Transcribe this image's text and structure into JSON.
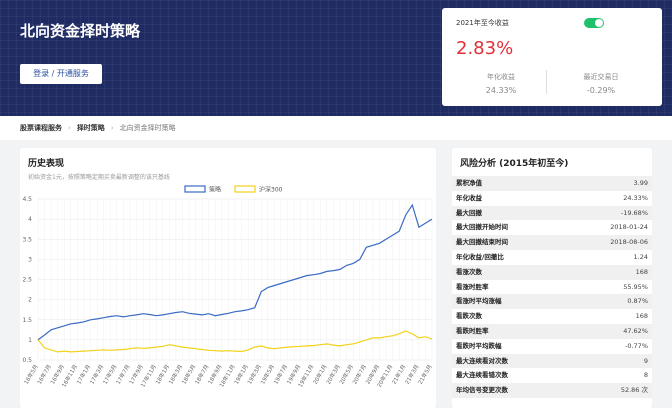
{
  "header": {
    "title": "北向资金择时策略",
    "button": "登录 / 开通服务"
  },
  "card": {
    "label": "2021年至今收益",
    "value": "2.83%",
    "stats": [
      {
        "label": "年化收益",
        "value": "24.33%"
      },
      {
        "label": "最近交易日",
        "value": "-0.29%"
      }
    ]
  },
  "breadcrumb": [
    "股票课程服务",
    "择时策略",
    "北向资金择时策略"
  ],
  "chart_data": {
    "type": "line",
    "title": "历史表现",
    "subtitle": "初始资金1元，按照策略定期买卖最新调整的该只基线",
    "categories": [
      "16年5月",
      null,
      "16年7月",
      null,
      "16年9月",
      null,
      "16年11月",
      null,
      "17年1月",
      null,
      "17年3月",
      null,
      "17年5月",
      null,
      "17年7月",
      null,
      "17年9月",
      null,
      "17年11月",
      null,
      "18年1月",
      null,
      "18年3月",
      null,
      "18年5月",
      null,
      "18年7月",
      null,
      "18年9月",
      null,
      "18年11月",
      null,
      "19年1月",
      null,
      "19年3月",
      null,
      "19年5月",
      null,
      "19年7月",
      null,
      "19年9月",
      null,
      "19年11月",
      null,
      "20年1月",
      null,
      "20年3月",
      null,
      "20年5月",
      null,
      "20年7月",
      null,
      "20年9月",
      null,
      "20年11月",
      null,
      "21年1月",
      null,
      "21年3月",
      null,
      "21年5月"
    ],
    "series": [
      {
        "name": "策略",
        "color": "#3b6bc4",
        "values": [
          1.0,
          1.12,
          1.25,
          1.3,
          1.35,
          1.4,
          1.42,
          1.45,
          1.5,
          1.52,
          1.55,
          1.58,
          1.6,
          1.57,
          1.6,
          1.62,
          1.65,
          1.63,
          1.6,
          1.62,
          1.65,
          1.68,
          1.7,
          1.66,
          1.64,
          1.62,
          1.65,
          1.6,
          1.63,
          1.66,
          1.7,
          1.72,
          1.75,
          1.8,
          2.2,
          2.3,
          2.35,
          2.4,
          2.45,
          2.5,
          2.55,
          2.6,
          2.62,
          2.65,
          2.7,
          2.72,
          2.75,
          2.85,
          2.9,
          3.0,
          3.3,
          3.35,
          3.4,
          3.5,
          3.6,
          3.7,
          4.1,
          4.35,
          3.8,
          3.9,
          4.0
        ]
      },
      {
        "name": "沪深300",
        "color": "#f2d21b",
        "values": [
          1.0,
          0.8,
          0.75,
          0.7,
          0.72,
          0.7,
          0.71,
          0.72,
          0.73,
          0.74,
          0.75,
          0.74,
          0.75,
          0.76,
          0.78,
          0.8,
          0.79,
          0.8,
          0.82,
          0.84,
          0.88,
          0.85,
          0.82,
          0.8,
          0.78,
          0.76,
          0.74,
          0.73,
          0.72,
          0.73,
          0.72,
          0.71,
          0.75,
          0.82,
          0.85,
          0.8,
          0.78,
          0.8,
          0.82,
          0.83,
          0.84,
          0.85,
          0.86,
          0.88,
          0.9,
          0.87,
          0.85,
          0.88,
          0.9,
          0.95,
          1.0,
          1.05,
          1.05,
          1.08,
          1.1,
          1.15,
          1.22,
          1.15,
          1.05,
          1.08,
          1.02
        ]
      }
    ],
    "ylim": [
      0.5,
      4.5
    ],
    "yticks": [
      0.5,
      1,
      1.5,
      2,
      2.5,
      3,
      3.5,
      4,
      4.5
    ],
    "grid": true
  },
  "risk_table": {
    "title": "风险分析 (2015年初至今)",
    "rows": [
      [
        "累积净值",
        "3.99"
      ],
      [
        "年化收益",
        "24.33%"
      ],
      [
        "最大回撤",
        "-19.68%"
      ],
      [
        "最大回撤开始时间",
        "2018-01-24"
      ],
      [
        "最大回撤结束时间",
        "2018-08-06"
      ],
      [
        "年化收益/回撤比",
        "1.24"
      ],
      [
        "看涨次数",
        "168"
      ],
      [
        "看涨时胜率",
        "55.95%"
      ],
      [
        "看涨时平均涨幅",
        "0.87%"
      ],
      [
        "看跌次数",
        "168"
      ],
      [
        "看跌时胜率",
        "47.62%"
      ],
      [
        "看跌时平均跌幅",
        "-0.77%"
      ],
      [
        "最大连续看对次数",
        "9"
      ],
      [
        "最大连续看错次数",
        "8"
      ],
      [
        "年均信号变更次数",
        "52.86 次"
      ]
    ]
  }
}
